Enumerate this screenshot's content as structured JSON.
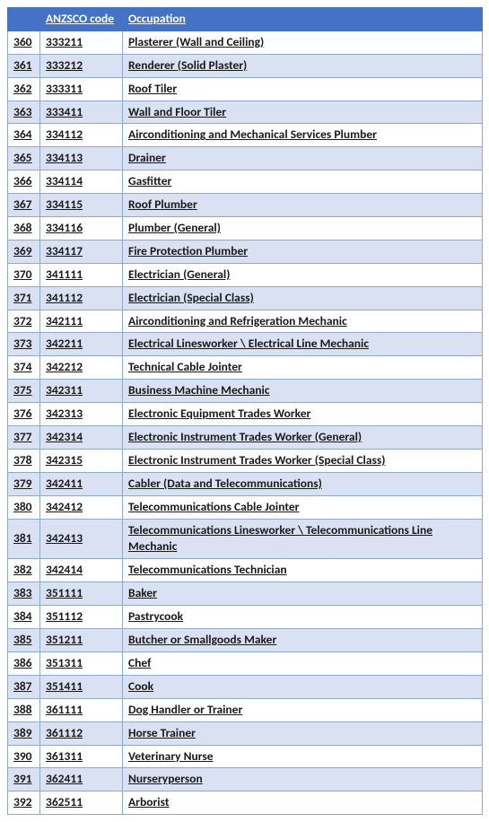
{
  "table": {
    "header_bg": "#4472c4",
    "header_fg": "#ffffff",
    "row_alt_bg": "#d9e1f2",
    "row_bg": "#ffffff",
    "border_color": "#8ea9c9",
    "text_color": "#1a1a1a",
    "columns": {
      "index": "",
      "code": "ANZSCO code",
      "occupation": "Occupation"
    },
    "rows": [
      {
        "idx": "360",
        "code": "333211",
        "occ": "Plasterer (Wall and Ceiling)"
      },
      {
        "idx": "361",
        "code": "333212",
        "occ": "Renderer (Solid Plaster)"
      },
      {
        "idx": "362",
        "code": "333311",
        "occ": "Roof Tiler"
      },
      {
        "idx": "363",
        "code": "333411",
        "occ": "Wall and Floor Tiler"
      },
      {
        "idx": "364",
        "code": "334112",
        "occ": "Airconditioning and Mechanical Services Plumber"
      },
      {
        "idx": "365",
        "code": "334113",
        "occ": "Drainer"
      },
      {
        "idx": "366",
        "code": "334114",
        "occ": "Gasfitter"
      },
      {
        "idx": "367",
        "code": "334115",
        "occ": "Roof Plumber"
      },
      {
        "idx": "368",
        "code": "334116",
        "occ": "Plumber (General)"
      },
      {
        "idx": "369",
        "code": "334117",
        "occ": "Fire Protection Plumber"
      },
      {
        "idx": "370",
        "code": "341111",
        "occ": "Electrician (General)"
      },
      {
        "idx": "371",
        "code": "341112",
        "occ": "Electrician (Special Class)"
      },
      {
        "idx": "372",
        "code": "342111",
        "occ": "Airconditioning and Refrigeration Mechanic"
      },
      {
        "idx": "373",
        "code": "342211",
        "occ": "Electrical Linesworker \\ Electrical Line Mechanic"
      },
      {
        "idx": "374",
        "code": "342212",
        "occ": "Technical Cable Jointer"
      },
      {
        "idx": "375",
        "code": "342311",
        "occ": "Business Machine Mechanic"
      },
      {
        "idx": "376",
        "code": "342313",
        "occ": "Electronic Equipment Trades Worker"
      },
      {
        "idx": "377",
        "code": "342314",
        "occ": "Electronic Instrument Trades Worker (General)"
      },
      {
        "idx": "378",
        "code": "342315",
        "occ": "Electronic Instrument Trades Worker (Special Class)"
      },
      {
        "idx": "379",
        "code": "342411",
        "occ": "Cabler (Data and Telecommunications)"
      },
      {
        "idx": "380",
        "code": "342412",
        "occ": "Telecommunications Cable Jointer"
      },
      {
        "idx": "381",
        "code": "342413",
        "occ": "Telecommunications Linesworker \\ Telecommunications Line Mechanic"
      },
      {
        "idx": "382",
        "code": "342414",
        "occ": "Telecommunications Technician"
      },
      {
        "idx": "383",
        "code": "351111",
        "occ": "Baker"
      },
      {
        "idx": "384",
        "code": "351112",
        "occ": "Pastrycook"
      },
      {
        "idx": "385",
        "code": "351211",
        "occ": "Butcher or Smallgoods Maker"
      },
      {
        "idx": "386",
        "code": "351311",
        "occ": "Chef"
      },
      {
        "idx": "387",
        "code": "351411",
        "occ": "Cook"
      },
      {
        "idx": "388",
        "code": "361111",
        "occ": "Dog Handler or Trainer"
      },
      {
        "idx": "389",
        "code": "361112",
        "occ": "Horse Trainer"
      },
      {
        "idx": "390",
        "code": "361311",
        "occ": "Veterinary Nurse"
      },
      {
        "idx": "391",
        "code": "362411",
        "occ": "Nurseryperson"
      },
      {
        "idx": "392",
        "code": "362511",
        "occ": "Arborist"
      }
    ]
  }
}
